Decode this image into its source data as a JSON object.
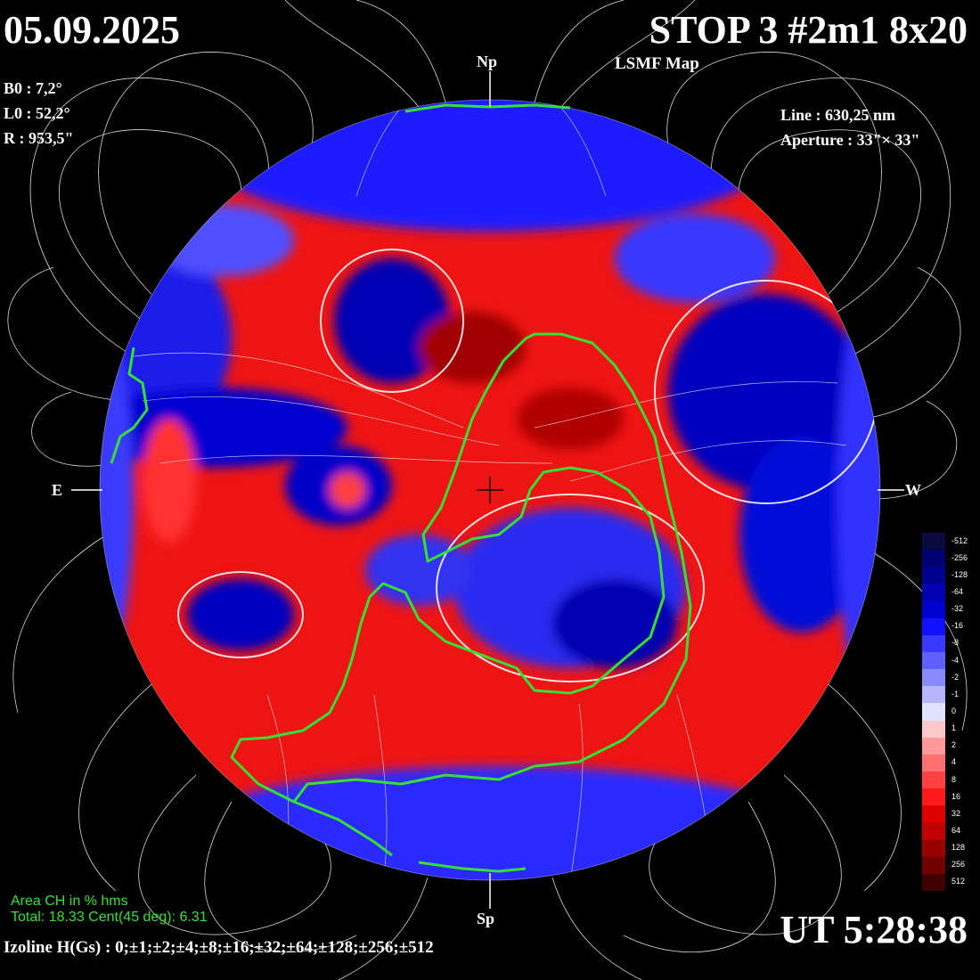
{
  "header": {
    "date": "05.09.2025",
    "title": "STOP 3 #2m1 8x20",
    "subtitle": "LSMF  Map"
  },
  "params": {
    "b0": "B0 : 7,2°",
    "l0": "L0 : 52,2°",
    "r": "R  : 953,5\"",
    "line": "Line :  630,25 nm",
    "aperture": "Aperture : 33\"× 33\""
  },
  "markers": {
    "north": "Np",
    "south": "Sp",
    "east": "E",
    "west": "W"
  },
  "coronal_hole": {
    "title": "Area CH in % hms",
    "stats": "Total: 18.33   Cent(45 deg): 6.31"
  },
  "isolines": "Izoline H(Gs) : 0;±1;±2;±4;±8;±16;±32;±64;±128;±256;±512",
  "time": "UT 5:28:38",
  "colorbar": {
    "levels": [
      "-512",
      "-256",
      "-128",
      "-64",
      "-32",
      "-16",
      "-8",
      "-4",
      "-2",
      "-1",
      "0",
      "1",
      "2",
      "4",
      "8",
      "16",
      "32",
      "64",
      "128",
      "256",
      "512"
    ],
    "colors": [
      "#0a0a40",
      "#000070",
      "#000090",
      "#0000b0",
      "#0000d0",
      "#1010ff",
      "#3a3aff",
      "#6060ff",
      "#8a8aff",
      "#b4b4ff",
      "#e0e0ff",
      "#ffc8c8",
      "#ff9a9a",
      "#ff7070",
      "#ff4040",
      "#ff1a1a",
      "#e00000",
      "#c00000",
      "#980000",
      "#700000",
      "#400000"
    ]
  },
  "colors": {
    "positive": "#e80a0a",
    "negative": "#0000c8",
    "neutral": "#ffffff",
    "ch_contour": "#35e035",
    "background": "#000000"
  }
}
